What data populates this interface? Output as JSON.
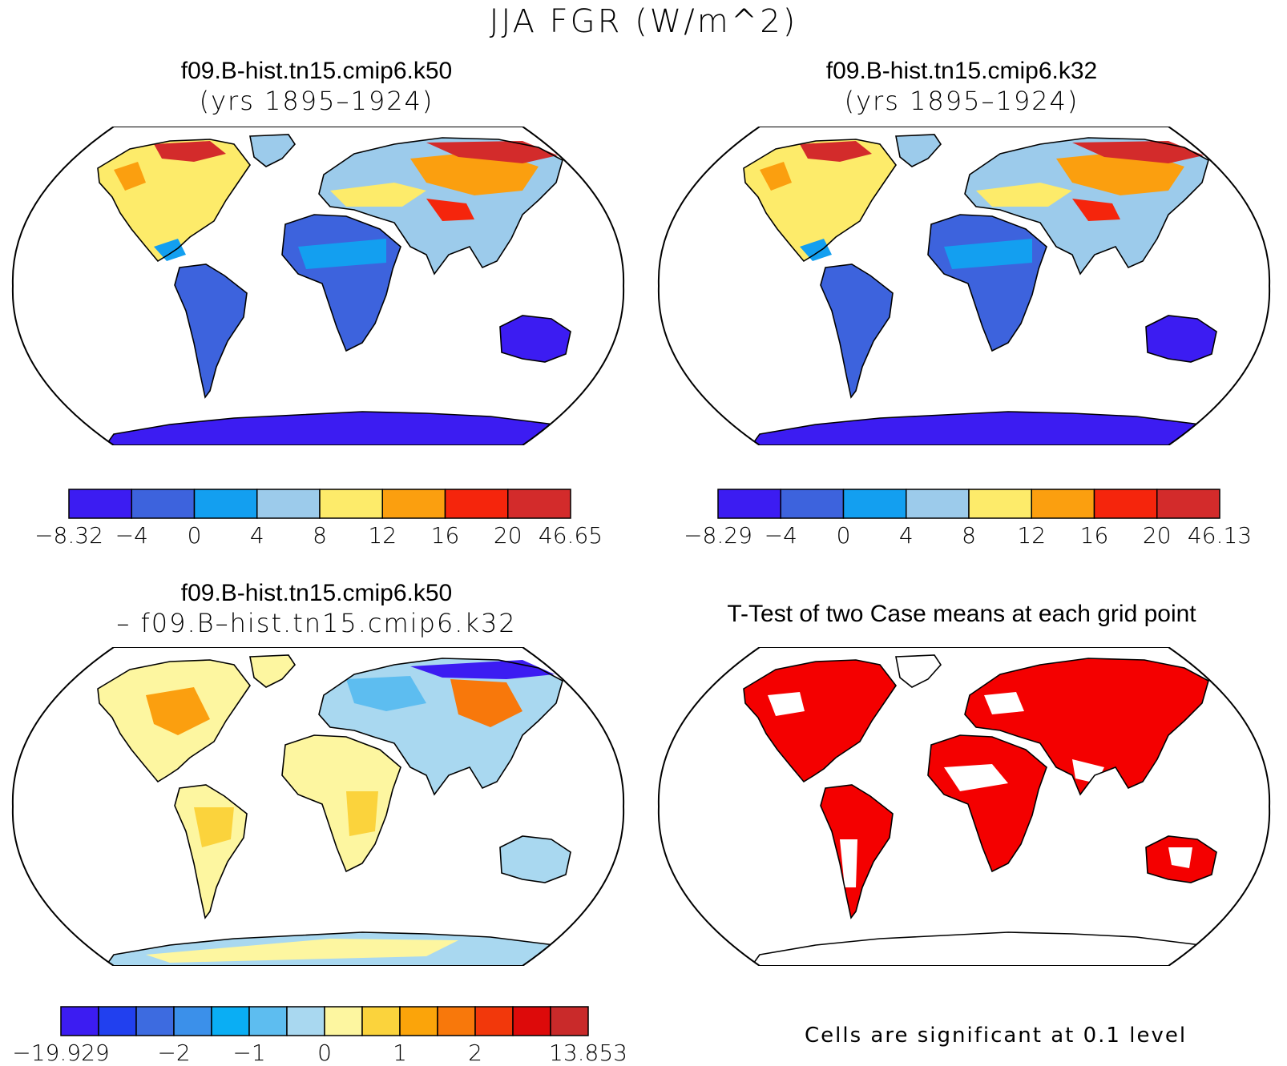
{
  "figure_title": "JJA FGR (W/m^2)",
  "panels": [
    {
      "line1": "f09.B-hist.tn15.cmip6.k50",
      "line2": "(yrs 1895–1924)"
    },
    {
      "line1": "f09.B-hist.tn15.cmip6.k32",
      "line2": "(yrs 1895–1924)"
    },
    {
      "line1": "f09.B-hist.tn15.cmip6.k50",
      "line2": "– f09.B–hist.tn15.cmip6.k32"
    },
    {
      "line1": "T-Test of two Case means at each grid point",
      "line2": ""
    }
  ],
  "colorbars": [
    {
      "labels": [
        "−8.32",
        "−4",
        "0",
        "4",
        "8",
        "12",
        "16",
        "20",
        "46.65"
      ],
      "colors": [
        "#3c1cf2",
        "#3d63dd",
        "#139ff0",
        "#9ccbeb",
        "#fdeb6a",
        "#fb9f0f",
        "#f5250c",
        "#d32b2b"
      ]
    },
    {
      "labels": [
        "−8.29",
        "−4",
        "0",
        "4",
        "8",
        "12",
        "16",
        "20",
        "46.13"
      ],
      "colors": [
        "#3c1cf2",
        "#3d63dd",
        "#139ff0",
        "#9ccbeb",
        "#fdeb6a",
        "#fb9f0f",
        "#f5250c",
        "#d32b2b"
      ]
    },
    {
      "labels": [
        "−19.929",
        "−2",
        "−1",
        "0",
        "1",
        "2",
        "13.853"
      ],
      "label_boundaries": [
        0,
        3,
        5,
        7,
        9,
        11,
        14
      ],
      "colors": [
        "#3c1cf2",
        "#2140ef",
        "#3d6be0",
        "#3b90ea",
        "#0aaef4",
        "#5dbdf0",
        "#a9d8f0",
        "#fdf6a0",
        "#fbd33c",
        "#fba40a",
        "#f8780b",
        "#f2380b",
        "#dd0a0a",
        "#c92a2a"
      ]
    }
  ],
  "significance_note": "Cells are significant at 0.1 level",
  "significance_color": "#f40000"
}
